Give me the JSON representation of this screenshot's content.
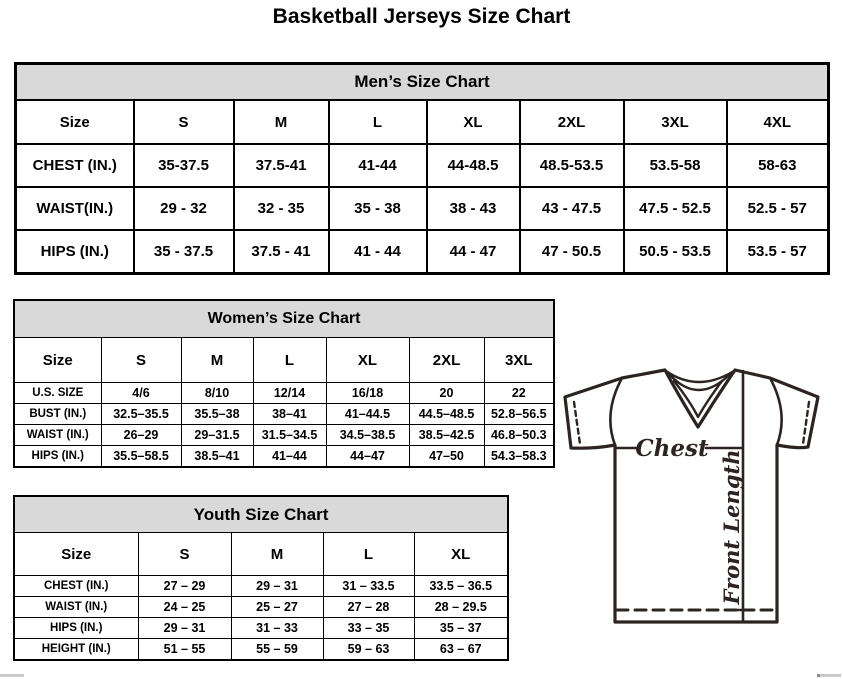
{
  "page_title": "Basketball Jerseys Size Chart",
  "colors": {
    "band_bg": "#d9d9d9",
    "table_border": "#000000",
    "diagram_ink": "#2b2422"
  },
  "men_table": {
    "title": "Men’s Size Chart",
    "corner_label": "Size",
    "size_headers": [
      "S",
      "M",
      "L",
      "XL",
      "2XL",
      "3XL",
      "4XL"
    ],
    "rows": [
      {
        "label": "CHEST (IN.)",
        "values": [
          "35-37.5",
          "37.5-41",
          "41-44",
          "44-48.5",
          "48.5-53.5",
          "53.5-58",
          "58-63"
        ]
      },
      {
        "label": "WAIST(IN.)",
        "values": [
          "29 - 32",
          "32 - 35",
          "35 - 38",
          "38 - 43",
          "43 - 47.5",
          "47.5 - 52.5",
          "52.5 - 57"
        ]
      },
      {
        "label": "HIPS (IN.)",
        "values": [
          "35 - 37.5",
          "37.5 - 41",
          "41 - 44",
          "44 - 47",
          "47 - 50.5",
          "50.5 - 53.5",
          "53.5 - 57"
        ]
      }
    ]
  },
  "women_table": {
    "title": "Women’s Size Chart",
    "corner_label": "Size",
    "size_headers": [
      "S",
      "M",
      "L",
      "XL",
      "2XL",
      "3XL"
    ],
    "rows": [
      {
        "label": "U.S. SIZE",
        "values": [
          "4/6",
          "8/10",
          "12/14",
          "16/18",
          "20",
          "22"
        ]
      },
      {
        "label": "BUST (IN.)",
        "values": [
          "32.5–35.5",
          "35.5–38",
          "38–41",
          "41–44.5",
          "44.5–48.5",
          "52.8–56.5"
        ]
      },
      {
        "label": "WAIST (IN.)",
        "values": [
          "26–29",
          "29–31.5",
          "31.5–34.5",
          "34.5–38.5",
          "38.5–42.5",
          "46.8–50.3"
        ]
      },
      {
        "label": "HIPS (IN.)",
        "values": [
          "35.5–58.5",
          "38.5–41",
          "41–44",
          "44–47",
          "47–50",
          "54.3–58.3"
        ]
      }
    ]
  },
  "youth_table": {
    "title": "Youth Size Chart",
    "corner_label": "Size",
    "size_headers": [
      "S",
      "M",
      "L",
      "XL"
    ],
    "rows": [
      {
        "label": "CHEST (IN.)",
        "values": [
          "27 – 29",
          "29 – 31",
          "31 – 33.5",
          "33.5 – 36.5"
        ]
      },
      {
        "label": "WAIST (IN.)",
        "values": [
          "24 – 25",
          "25 – 27",
          "27 – 28",
          "28 – 29.5"
        ]
      },
      {
        "label": "HIPS (IN.)",
        "values": [
          "29 – 31",
          "31 – 33",
          "33 – 35",
          "35 – 37"
        ]
      },
      {
        "label": "HEIGHT (IN.)",
        "values": [
          "51 – 55",
          "55 – 59",
          "59 – 63",
          "63 – 67"
        ]
      }
    ]
  },
  "diagram": {
    "chest_label": "Chest",
    "front_length_label": "Front Length"
  }
}
